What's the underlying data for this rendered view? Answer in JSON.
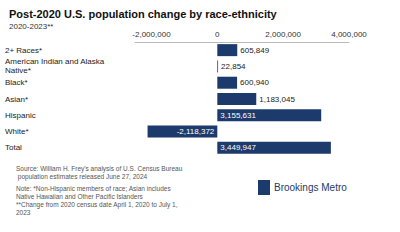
{
  "chart_data": {
    "type": "bar",
    "title": "Post-2020 U.S. population change by race-ethnicity",
    "subtitle": "2020-2023**",
    "orientation": "horizontal",
    "categories": [
      "2+ Races*",
      "American Indian and Alaska Native*",
      "Black*",
      "Asian*",
      "Hispanic",
      "White*",
      "Total"
    ],
    "values": [
      605849,
      22854,
      600940,
      1183045,
      3155631,
      -2118372,
      3449947
    ],
    "value_labels": [
      "605,849",
      "22,854",
      "600,940",
      "1,183,045",
      "3,155,631",
      "-2,118,372",
      "3,449,947"
    ],
    "data_labels": true,
    "color": "#1c3a6b",
    "xlim": [
      -2500000,
      4000000
    ],
    "xticks": [
      {
        "value": -2000000,
        "label": "-2,000,000"
      },
      0,
      {
        "value": 2000000,
        "label": "2,000,000"
      },
      {
        "value": 4000000,
        "label": "4,000,000"
      }
    ],
    "grid": false
  },
  "source": "Source: William H. Frey's analysis of U.S. Census Bureau population estimates released June 27, 2024",
  "notes": [
    "Note: *Non-Hispanic members of race; Asian includes Native Hawaiian and Other Pacific Islanders",
    "**Change from 2020 census date April 1, 2020 to July 1, 2023"
  ],
  "branding": "Brookings Metro"
}
